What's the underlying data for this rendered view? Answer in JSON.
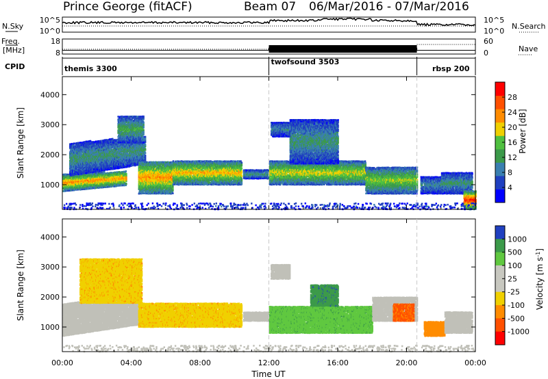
{
  "header": {
    "station": "Prince George (fitACF)",
    "beam": "Beam 07",
    "date_range": "06/Mar/2016 - 07/Mar/2016"
  },
  "colors": {
    "power_scale": [
      "#0000ff",
      "#2040c0",
      "#3a7fb0",
      "#3c9a4a",
      "#50c040",
      "#f0d000",
      "#ff8c00",
      "#ff5000",
      "#ff0000"
    ],
    "velocity_scale": [
      "#2040c0",
      "#3c9a4a",
      "#60c840",
      "#c8c8c0",
      "#c8c8c0",
      "#f0d000",
      "#ff8c00",
      "#ff5000",
      "#ff0000"
    ],
    "ground_scatter": "#c0c0b8",
    "beam_marker": "#000000"
  },
  "chart_data": [
    {
      "id": "nsky",
      "type": "line",
      "title": "",
      "ylabel_left": "N.Sky",
      "ylabel_right": "N.Search",
      "left_ticks": [
        "10^5",
        "10^0"
      ],
      "right_ticks": [
        "10^5",
        "10^0"
      ],
      "legend_style": "dotted"
    },
    {
      "id": "freq",
      "type": "line",
      "ylabel_left": "Freq. [MHz]",
      "ylabel_right": "Nave",
      "left_ticks": [
        "18",
        "8"
      ],
      "right_ticks": [
        "60",
        "0"
      ],
      "series": [
        {
          "name": "Freq.",
          "x_hours": [
            0,
            12,
            12,
            20.6,
            20.6,
            24
          ],
          "values": [
            10.5,
            10.5,
            12,
            12,
            10.5,
            10.5
          ]
        },
        {
          "name": "Nave",
          "x_hours": [
            0,
            24
          ],
          "values": [
            20,
            20
          ]
        }
      ]
    },
    {
      "id": "cpid",
      "type": "table",
      "label": "CPID",
      "segments": [
        {
          "name": "themis 3300",
          "start_hour": 0,
          "end_hour": 12
        },
        {
          "name": "twofsound 3503",
          "start_hour": 12,
          "end_hour": 20.6
        },
        {
          "name": "rbsp 200",
          "start_hour": 20.6,
          "end_hour": 24
        }
      ],
      "boundaries_hours": [
        12,
        20.6
      ]
    },
    {
      "id": "power",
      "type": "heatmap",
      "ylabel": "Slant Range [km]",
      "ylim": [
        180,
        4600
      ],
      "yticks": [
        1000,
        2000,
        3000,
        4000
      ],
      "xlim_hours": [
        0,
        24
      ],
      "colorbar": {
        "label": "Power [dB]",
        "ticks": [
          4,
          8,
          12,
          16,
          20,
          24,
          28
        ],
        "range": [
          0,
          32
        ]
      },
      "grid": false,
      "regions": [
        {
          "start": 0.0,
          "end": 3.7,
          "r0": 780,
          "r1": 1350,
          "slope": 1,
          "v": 24
        },
        {
          "start": 0.4,
          "end": 4.8,
          "r0": 1300,
          "r1": 2400,
          "slope": 1,
          "v": 12
        },
        {
          "start": 3.2,
          "end": 4.7,
          "r0": 2400,
          "r1": 3300,
          "v": 14
        },
        {
          "start": 4.4,
          "end": 6.4,
          "r0": 700,
          "r1": 1800,
          "v": 24
        },
        {
          "start": 6.4,
          "end": 10.4,
          "r0": 1000,
          "r1": 1800,
          "v": 22
        },
        {
          "start": 10.5,
          "end": 12.0,
          "r0": 1200,
          "r1": 1500,
          "v": 12
        },
        {
          "start": 12.0,
          "end": 17.6,
          "r0": 1000,
          "r1": 1800,
          "v": 20
        },
        {
          "start": 13.2,
          "end": 16.0,
          "r0": 1700,
          "r1": 3200,
          "v": 12
        },
        {
          "start": 12.1,
          "end": 13.2,
          "r0": 2600,
          "r1": 3100,
          "v": 10
        },
        {
          "start": 17.6,
          "end": 20.6,
          "r0": 700,
          "r1": 1600,
          "v": 18
        },
        {
          "start": 20.8,
          "end": 22.2,
          "r0": 700,
          "r1": 1300,
          "v": 10
        },
        {
          "start": 22.0,
          "end": 23.8,
          "r0": 700,
          "r1": 1400,
          "v": 12
        },
        {
          "start": 23.3,
          "end": 24.0,
          "r0": 180,
          "r1": 800,
          "v": 30
        },
        {
          "start": 0.0,
          "end": 24.0,
          "r0": 180,
          "r1": 420,
          "v": 6,
          "sparse": true
        }
      ]
    },
    {
      "id": "velocity",
      "type": "heatmap",
      "ylabel": "Slant Range [km]",
      "ylim": [
        180,
        4600
      ],
      "yticks": [
        1000,
        2000,
        3000,
        4000
      ],
      "xlim_hours": [
        0,
        24
      ],
      "colorbar": {
        "label": "Velocity [m s^-1]",
        "ticks": [
          "1000",
          "500",
          "100",
          "25",
          "-25",
          "-100",
          "-500",
          "-1000"
        ]
      },
      "grid": false,
      "regions": [
        {
          "start": 0.0,
          "end": 4.5,
          "r0": 700,
          "r1": 1800,
          "slope": 1,
          "v": "gs"
        },
        {
          "start": 1.0,
          "end": 4.6,
          "r0": 1800,
          "r1": 3300,
          "v": -80
        },
        {
          "start": 4.4,
          "end": 10.4,
          "r0": 1000,
          "r1": 1800,
          "v": -80
        },
        {
          "start": 10.5,
          "end": 12.0,
          "r0": 1200,
          "r1": 1500,
          "v": "gs"
        },
        {
          "start": 12.0,
          "end": 18.0,
          "r0": 800,
          "r1": 1700,
          "v": 80
        },
        {
          "start": 14.4,
          "end": 16.0,
          "r0": 1700,
          "r1": 2400,
          "v": 400
        },
        {
          "start": 12.1,
          "end": 13.2,
          "r0": 2600,
          "r1": 3100,
          "v": "gs"
        },
        {
          "start": 18.0,
          "end": 20.6,
          "r0": 1200,
          "r1": 2000,
          "v": "gs"
        },
        {
          "start": 19.2,
          "end": 20.4,
          "r0": 1200,
          "r1": 1800,
          "v": -600
        },
        {
          "start": 21.0,
          "end": 22.2,
          "r0": 700,
          "r1": 1200,
          "v": -150
        },
        {
          "start": 22.2,
          "end": 23.8,
          "r0": 800,
          "r1": 1500,
          "v": "gs"
        },
        {
          "start": 0.0,
          "end": 24.0,
          "r0": 180,
          "r1": 420,
          "v": "gs",
          "sparse": true
        }
      ]
    }
  ],
  "x_axis": {
    "label": "Time UT",
    "ticks": [
      "00:00",
      "04:00",
      "08:00",
      "12:00",
      "16:00",
      "20:00",
      "00:00"
    ]
  }
}
